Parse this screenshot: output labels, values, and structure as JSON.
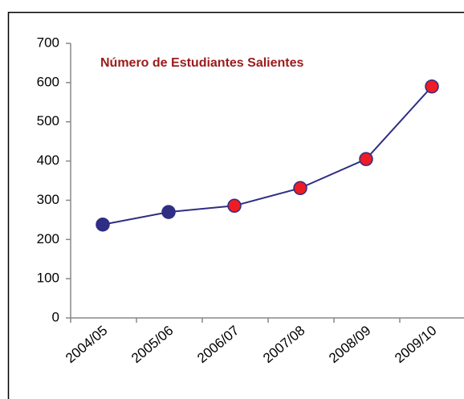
{
  "chart_data": {
    "type": "line",
    "title": "Número de Estudiantes Salientes",
    "categories": [
      "2004/05",
      "2005/06",
      "2006/07",
      "2007/08",
      "2008/09",
      "2009/10"
    ],
    "values": [
      238,
      270,
      286,
      331,
      405,
      590
    ],
    "color": "#2e2e84",
    "marker_colors": [
      "#2e2e84",
      "#2e2e84",
      "#ee1c24",
      "#ee1c24",
      "#ee1c24",
      "#ee1c24"
    ],
    "ylim": [
      0,
      700
    ],
    "yticks": [
      0,
      100,
      200,
      300,
      400,
      500,
      600,
      700
    ],
    "grid": false
  }
}
